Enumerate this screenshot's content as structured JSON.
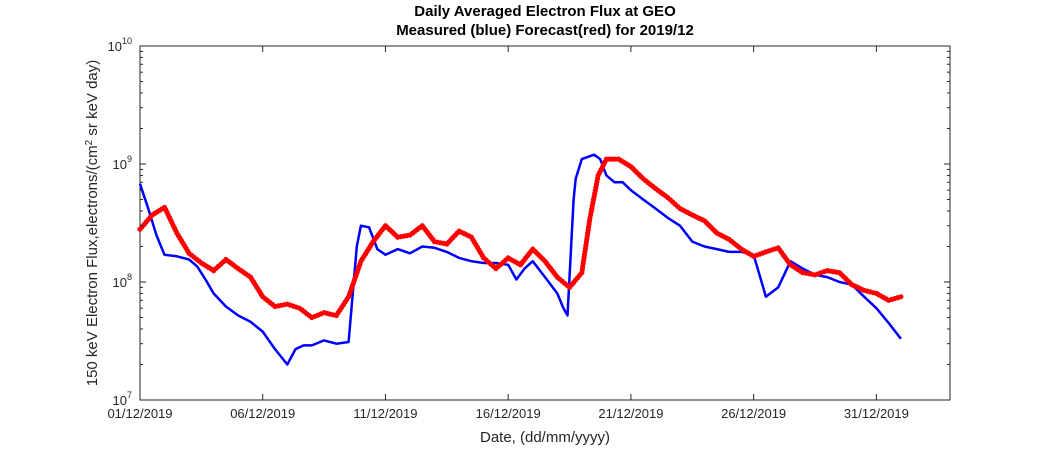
{
  "chart_data": {
    "type": "line",
    "title": "Daily Averaged Electron Flux at GEO",
    "subtitle": "Measured (blue) Forecast(red) for 2019/12",
    "xlabel": "Date, (dd/mm/yyyy)",
    "ylabel": "150 keV Electron Flux,electrons/(cm",
    "ylabel_sup": "2",
    "ylabel_tail": " sr keV day)",
    "x_tick_labels": [
      "01/12/2019",
      "06/12/2019",
      "11/12/2019",
      "16/12/2019",
      "21/12/2019",
      "26/12/2019",
      "31/12/2019"
    ],
    "y_tick_labels": [
      {
        "base": "10",
        "exp": "7"
      },
      {
        "base": "10",
        "exp": "8"
      },
      {
        "base": "10",
        "exp": "9"
      },
      {
        "base": "10",
        "exp": "10"
      }
    ],
    "xlim": [
      "2019-12-01",
      "2020-01-03"
    ],
    "ylim": [
      10000000,
      10000000000
    ],
    "yscale": "log",
    "grid": false,
    "legend": "none",
    "series": [
      {
        "color": "#0000FF",
        "style": "line",
        "x": [
          "2019-12-01",
          "2019-12-01T08:00",
          "2019-12-01T16:00",
          "2019-12-02",
          "2019-12-02T12:00",
          "2019-12-03",
          "2019-12-03T08:00",
          "2019-12-03T16:00",
          "2019-12-04",
          "2019-12-04T12:00",
          "2019-12-05",
          "2019-12-05T12:00",
          "2019-12-06",
          "2019-12-06T12:00",
          "2019-12-07",
          "2019-12-07T08:00",
          "2019-12-07T16:00",
          "2019-12-08",
          "2019-12-08T12:00",
          "2019-12-09",
          "2019-12-09T12:00",
          "2019-12-09T20:00",
          "2019-12-10",
          "2019-12-10T08:00",
          "2019-12-10T16:00",
          "2019-12-11",
          "2019-12-11T12:00",
          "2019-12-12",
          "2019-12-12T12:00",
          "2019-12-13",
          "2019-12-13T12:00",
          "2019-12-14",
          "2019-12-14T12:00",
          "2019-12-15",
          "2019-12-15T12:00",
          "2019-12-16",
          "2019-12-16T08:00",
          "2019-12-16T16:00",
          "2019-12-17",
          "2019-12-17T12:00",
          "2019-12-18",
          "2019-12-18T06:00",
          "2019-12-18T10:00",
          "2019-12-18T16:00",
          "2019-12-18T18:00",
          "2019-12-19",
          "2019-12-19T12:00",
          "2019-12-19T18:00",
          "2019-12-20",
          "2019-12-20T08:00",
          "2019-12-20T16:00",
          "2019-12-21",
          "2019-12-21T12:00",
          "2019-12-22",
          "2019-12-22T12:00",
          "2019-12-23",
          "2019-12-23T12:00",
          "2019-12-24",
          "2019-12-24T12:00",
          "2019-12-25",
          "2019-12-25T12:00",
          "2019-12-26",
          "2019-12-26T12:00",
          "2019-12-27",
          "2019-12-27T12:00",
          "2019-12-28",
          "2019-12-28T12:00",
          "2019-12-29",
          "2019-12-29T12:00",
          "2019-12-30",
          "2019-12-30T12:00",
          "2019-12-31",
          "2019-12-31T12:00",
          "2020-01-01"
        ],
        "y": [
          680000000,
          420000000,
          250000000,
          170000000,
          165000000,
          155000000,
          135000000,
          105000000,
          80000000,
          62000000,
          52000000,
          46000000,
          38000000,
          27000000,
          20000000,
          27000000,
          29000000,
          29000000,
          32000000,
          30000000,
          31000000,
          200000000,
          300000000,
          290000000,
          190000000,
          170000000,
          190000000,
          175000000,
          200000000,
          195000000,
          180000000,
          160000000,
          150000000,
          145000000,
          145000000,
          140000000,
          105000000,
          130000000,
          150000000,
          110000000,
          80000000,
          60000000,
          52000000,
          500000000,
          750000000,
          1100000000,
          1200000000,
          1100000000,
          800000000,
          700000000,
          700000000,
          600000000,
          500000000,
          420000000,
          350000000,
          300000000,
          220000000,
          200000000,
          190000000,
          180000000,
          180000000,
          170000000,
          75000000,
          90000000,
          150000000,
          130000000,
          115000000,
          110000000,
          100000000,
          95000000,
          75000000,
          60000000,
          45000000,
          33000000
        ]
      },
      {
        "color": "#FF0000",
        "style": "markers",
        "x": [
          "2019-12-01",
          "2019-12-01T12:00",
          "2019-12-02",
          "2019-12-02T12:00",
          "2019-12-03",
          "2019-12-03T12:00",
          "2019-12-04",
          "2019-12-04T12:00",
          "2019-12-05",
          "2019-12-05T12:00",
          "2019-12-06",
          "2019-12-06T12:00",
          "2019-12-07",
          "2019-12-07T12:00",
          "2019-12-08",
          "2019-12-08T12:00",
          "2019-12-09",
          "2019-12-09T12:00",
          "2019-12-10",
          "2019-12-10T12:00",
          "2019-12-11",
          "2019-12-11T12:00",
          "2019-12-12",
          "2019-12-12T12:00",
          "2019-12-13",
          "2019-12-13T12:00",
          "2019-12-14",
          "2019-12-14T12:00",
          "2019-12-15",
          "2019-12-15T12:00",
          "2019-12-16",
          "2019-12-16T12:00",
          "2019-12-17",
          "2019-12-17T12:00",
          "2019-12-18",
          "2019-12-18T12:00",
          "2019-12-19",
          "2019-12-19T08:00",
          "2019-12-19T16:00",
          "2019-12-20",
          "2019-12-20T12:00",
          "2019-12-21",
          "2019-12-21T12:00",
          "2019-12-22",
          "2019-12-22T12:00",
          "2019-12-23",
          "2019-12-23T12:00",
          "2019-12-24",
          "2019-12-24T12:00",
          "2019-12-25",
          "2019-12-25T12:00",
          "2019-12-26",
          "2019-12-26T12:00",
          "2019-12-27",
          "2019-12-27T12:00",
          "2019-12-28",
          "2019-12-28T12:00",
          "2019-12-29",
          "2019-12-29T12:00",
          "2019-12-30",
          "2019-12-30T12:00",
          "2019-12-31",
          "2019-12-31T12:00",
          "2020-01-01"
        ],
        "y": [
          280000000,
          370000000,
          430000000,
          260000000,
          175000000,
          145000000,
          125000000,
          155000000,
          130000000,
          110000000,
          75000000,
          62000000,
          65000000,
          60000000,
          50000000,
          55000000,
          52000000,
          75000000,
          150000000,
          220000000,
          300000000,
          240000000,
          250000000,
          300000000,
          220000000,
          210000000,
          270000000,
          240000000,
          160000000,
          130000000,
          160000000,
          140000000,
          190000000,
          150000000,
          110000000,
          90000000,
          120000000,
          350000000,
          800000000,
          1100000000,
          1100000000,
          950000000,
          750000000,
          620000000,
          520000000,
          420000000,
          370000000,
          330000000,
          260000000,
          230000000,
          190000000,
          165000000,
          180000000,
          195000000,
          140000000,
          120000000,
          115000000,
          125000000,
          120000000,
          95000000,
          85000000,
          80000000,
          70000000,
          75000000
        ]
      }
    ]
  }
}
